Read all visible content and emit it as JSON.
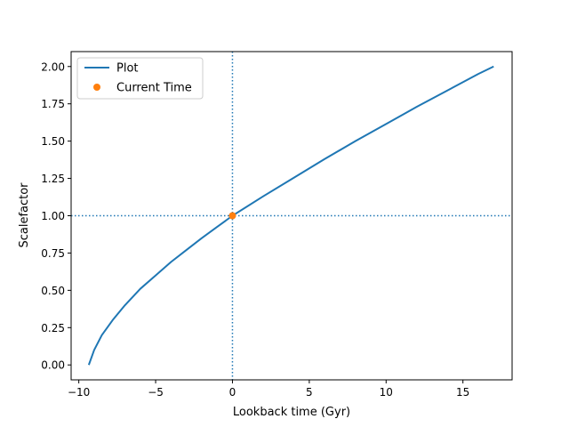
{
  "chart_data": {
    "type": "line",
    "xlabel": "Lookback time (Gyr)",
    "ylabel": "Scalefactor",
    "xlim": [
      -10.5,
      18.2
    ],
    "ylim": [
      -0.1,
      2.1
    ],
    "xticks": [
      -10,
      -5,
      0,
      5,
      10,
      15
    ],
    "xtick_labels": [
      "−10",
      "−5",
      "0",
      "5",
      "10",
      "15"
    ],
    "yticks": [
      0.0,
      0.25,
      0.5,
      0.75,
      1.0,
      1.25,
      1.5,
      1.75,
      2.0
    ],
    "ytick_labels": [
      "0.00",
      "0.25",
      "0.50",
      "0.75",
      "1.00",
      "1.25",
      "1.50",
      "1.75",
      "2.00"
    ],
    "grid": false,
    "legend_position": "upper-left",
    "series": [
      {
        "name": "Plot",
        "color": "#1f77b4",
        "style": "solid",
        "x": [
          -9.35,
          -9.0,
          -8.5,
          -7.8,
          -7.0,
          -6.0,
          -5.0,
          -4.0,
          -3.0,
          -2.0,
          -1.0,
          0.0,
          2.0,
          4.0,
          6.0,
          8.0,
          10.0,
          12.0,
          14.0,
          16.0,
          17.0
        ],
        "y": [
          0.0,
          0.1,
          0.2,
          0.3,
          0.4,
          0.51,
          0.6,
          0.69,
          0.77,
          0.85,
          0.925,
          1.0,
          1.13,
          1.255,
          1.38,
          1.5,
          1.615,
          1.73,
          1.84,
          1.95,
          2.0
        ]
      },
      {
        "name": "Current Time",
        "color": "#ff7f0e",
        "style": "marker",
        "x": [
          0.0
        ],
        "y": [
          1.0
        ]
      }
    ],
    "reference_lines": [
      {
        "orientation": "vertical",
        "x": 0.0,
        "color": "#1f77b4",
        "style": "dotted"
      },
      {
        "orientation": "horizontal",
        "y": 1.0,
        "color": "#1f77b4",
        "style": "dotted"
      }
    ]
  }
}
